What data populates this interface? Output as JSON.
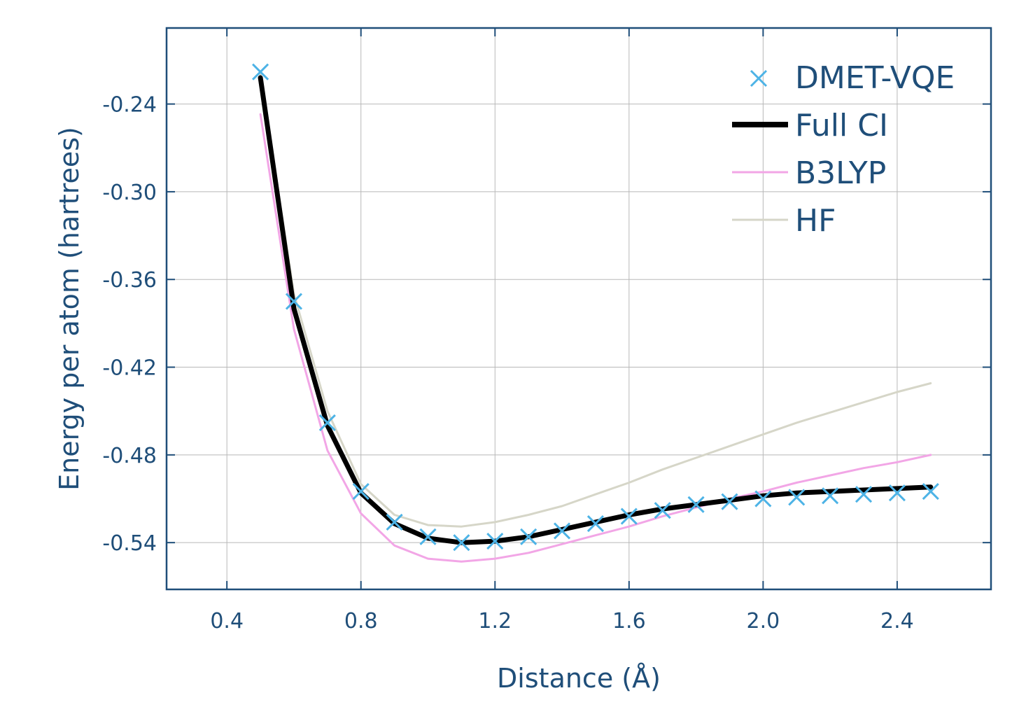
{
  "chart_data": {
    "type": "line",
    "xlabel": "Distance (Å)",
    "ylabel": "Energy per atom (hartrees)",
    "xlim": [
      0.22,
      2.68
    ],
    "ylim": [
      -0.572,
      -0.188
    ],
    "xticks": [
      0.4,
      0.8,
      1.2,
      1.6,
      2.0,
      2.4
    ],
    "xtick_labels": [
      "0.4",
      "0.8",
      "1.2",
      "1.6",
      "2.0",
      "2.4"
    ],
    "yticks": [
      -0.24,
      -0.3,
      -0.36,
      -0.42,
      -0.48,
      -0.54
    ],
    "ytick_labels": [
      "-0.24",
      "-0.30",
      "-0.36",
      "-0.42",
      "-0.48",
      "-0.54"
    ],
    "grid": true,
    "legend_position": "top-right",
    "x": [
      0.5,
      0.6,
      0.7,
      0.8,
      0.9,
      1.0,
      1.1,
      1.2,
      1.3,
      1.4,
      1.5,
      1.6,
      1.7,
      1.8,
      1.9,
      2.0,
      2.1,
      2.2,
      2.3,
      2.4,
      2.5
    ],
    "series": [
      {
        "name": "DMET-VQE",
        "style": "marker-x",
        "color": "#4db3e6",
        "values": [
          -0.218,
          -0.375,
          -0.458,
          -0.505,
          -0.526,
          -0.536,
          -0.54,
          -0.539,
          -0.536,
          -0.532,
          -0.527,
          -0.522,
          -0.518,
          -0.514,
          -0.512,
          -0.51,
          -0.509,
          -0.508,
          -0.507,
          -0.506,
          -0.505
        ]
      },
      {
        "name": "Full CI",
        "style": "line-thick",
        "color": "#000000",
        "values": [
          -0.222,
          -0.38,
          -0.46,
          -0.506,
          -0.527,
          -0.537,
          -0.54,
          -0.539,
          -0.536,
          -0.531,
          -0.526,
          -0.521,
          -0.517,
          -0.514,
          -0.511,
          -0.508,
          -0.506,
          -0.505,
          -0.504,
          -0.503,
          -0.502
        ]
      },
      {
        "name": "B3LYP",
        "style": "line-thin",
        "color": "#f2a6e6",
        "values": [
          -0.247,
          -0.394,
          -0.477,
          -0.52,
          -0.542,
          -0.551,
          -0.553,
          -0.551,
          -0.547,
          -0.541,
          -0.535,
          -0.529,
          -0.522,
          -0.516,
          -0.51,
          -0.505,
          -0.499,
          -0.494,
          -0.489,
          -0.485,
          -0.48
        ]
      },
      {
        "name": "HF",
        "style": "line-thin",
        "color": "#d6d6c8",
        "values": [
          -0.22,
          -0.37,
          -0.45,
          -0.5,
          -0.521,
          -0.528,
          -0.529,
          -0.526,
          -0.521,
          -0.515,
          -0.507,
          -0.499,
          -0.49,
          -0.482,
          -0.474,
          -0.466,
          -0.458,
          -0.451,
          -0.444,
          -0.437,
          -0.431
        ]
      }
    ]
  }
}
